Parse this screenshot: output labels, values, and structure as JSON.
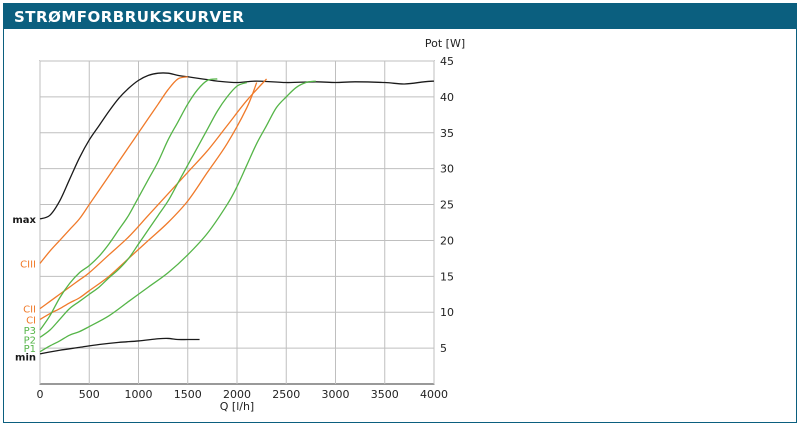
{
  "header": {
    "title": "STRØMFORBRUKSKURVER"
  },
  "chart_data": {
    "type": "line",
    "title": "",
    "xlabel": "Q [l/h]",
    "ylabel": "Pot [W]",
    "xlim": [
      0,
      4000
    ],
    "ylim": [
      0,
      45
    ],
    "xticks": [
      "0",
      "500",
      "1000",
      "1500",
      "2000",
      "2500",
      "3000",
      "3500",
      "4000"
    ],
    "yticks": [
      "5",
      "10",
      "15",
      "20",
      "25",
      "30",
      "35",
      "40",
      "45"
    ],
    "grid": true,
    "colors": {
      "black": "#1a1a1a",
      "orange": "#f07a2a",
      "green": "#55b548",
      "grid": "#bfbfbf",
      "header": "#0b5f7f"
    },
    "series": [
      {
        "name": "max",
        "color": "black",
        "x": [
          0,
          100,
          200,
          300,
          400,
          500,
          600,
          700,
          800,
          900,
          1000,
          1100,
          1200,
          1300,
          1400,
          1500,
          1600,
          1700,
          1800,
          2000,
          2200,
          2500,
          2800,
          3000,
          3200,
          3500,
          3700,
          3900,
          4000
        ],
        "y": [
          23.0,
          23.5,
          25.5,
          28.5,
          31.5,
          34.0,
          36.0,
          38.0,
          39.8,
          41.2,
          42.3,
          43.0,
          43.3,
          43.3,
          43.0,
          42.8,
          42.6,
          42.4,
          42.2,
          42.0,
          42.2,
          42.0,
          42.1,
          42.0,
          42.1,
          42.0,
          41.8,
          42.1,
          42.2
        ]
      },
      {
        "name": "CIII",
        "color": "orange",
        "x": [
          0,
          100,
          200,
          300,
          400,
          500,
          600,
          700,
          800,
          900,
          1000,
          1100,
          1200,
          1300,
          1400,
          1500
        ],
        "y": [
          16.8,
          18.5,
          20.0,
          21.5,
          23.0,
          25.0,
          27.0,
          29.0,
          31.0,
          33.0,
          35.0,
          37.0,
          39.0,
          41.0,
          42.5,
          42.8
        ]
      },
      {
        "name": "CII",
        "color": "orange",
        "x": [
          0,
          100,
          200,
          300,
          400,
          500,
          700,
          900,
          1100,
          1300,
          1500,
          1700,
          1900,
          2100,
          2300
        ],
        "y": [
          10.5,
          11.5,
          12.5,
          13.5,
          14.5,
          15.5,
          18.0,
          20.5,
          23.5,
          26.5,
          29.5,
          32.5,
          36.0,
          39.5,
          42.5
        ]
      },
      {
        "name": "CI",
        "color": "orange",
        "x": [
          0,
          100,
          200,
          300,
          400,
          500,
          700,
          900,
          1100,
          1300,
          1500,
          1700,
          1900,
          2100,
          2200
        ],
        "y": [
          9.0,
          9.8,
          10.5,
          11.3,
          12.0,
          13.0,
          15.0,
          17.5,
          20.0,
          22.5,
          25.5,
          29.5,
          33.5,
          38.5,
          42.0
        ]
      },
      {
        "name": "P3",
        "color": "green",
        "x": [
          0,
          100,
          200,
          300,
          400,
          500,
          600,
          700,
          800,
          900,
          1000,
          1100,
          1200,
          1300,
          1400,
          1500,
          1600,
          1700,
          1800
        ],
        "y": [
          7.5,
          9.5,
          12.0,
          14.0,
          15.5,
          16.5,
          17.8,
          19.5,
          21.5,
          23.5,
          26.0,
          28.5,
          31.0,
          34.0,
          36.5,
          39.0,
          41.0,
          42.3,
          42.5
        ]
      },
      {
        "name": "P2",
        "color": "green",
        "x": [
          0,
          100,
          200,
          300,
          400,
          500,
          600,
          700,
          800,
          900,
          1000,
          1100,
          1200,
          1300,
          1400,
          1500,
          1600,
          1700,
          1800,
          1900,
          2000,
          2100
        ],
        "y": [
          6.5,
          7.5,
          9.0,
          10.5,
          11.5,
          12.5,
          13.5,
          14.8,
          16.0,
          17.5,
          19.5,
          21.5,
          23.5,
          25.5,
          28.0,
          30.5,
          33.0,
          35.5,
          38.0,
          40.0,
          41.5,
          42.0
        ]
      },
      {
        "name": "P1",
        "color": "green",
        "x": [
          0,
          100,
          200,
          300,
          400,
          500,
          700,
          900,
          1100,
          1300,
          1500,
          1700,
          1900,
          2000,
          2100,
          2200,
          2300,
          2400,
          2500,
          2600,
          2700,
          2800
        ],
        "y": [
          4.5,
          5.3,
          6.0,
          6.8,
          7.3,
          8.0,
          9.5,
          11.5,
          13.5,
          15.5,
          18.0,
          21.0,
          25.0,
          27.5,
          30.5,
          33.5,
          36.0,
          38.5,
          40.0,
          41.3,
          42.0,
          42.2
        ]
      },
      {
        "name": "min",
        "color": "black",
        "x": [
          0,
          200,
          400,
          600,
          800,
          1000,
          1200,
          1300,
          1400,
          1500,
          1620
        ],
        "y": [
          4.2,
          4.7,
          5.1,
          5.5,
          5.8,
          6.0,
          6.3,
          6.35,
          6.2,
          6.2,
          6.2
        ]
      }
    ],
    "left_labels": [
      {
        "text": "max",
        "color": "black",
        "y": 23.0
      },
      {
        "text": "CIII",
        "color": "orange",
        "y": 16.8
      },
      {
        "text": "CII",
        "color": "orange",
        "y": 10.5
      },
      {
        "text": "CI",
        "color": "orange",
        "y": 9.0
      },
      {
        "text": "P3",
        "color": "green",
        "y": 7.5
      },
      {
        "text": "P2",
        "color": "green",
        "y": 6.2
      },
      {
        "text": "P1",
        "color": "green",
        "y": 5.0
      },
      {
        "text": "min",
        "color": "black",
        "y": 3.8
      }
    ]
  }
}
